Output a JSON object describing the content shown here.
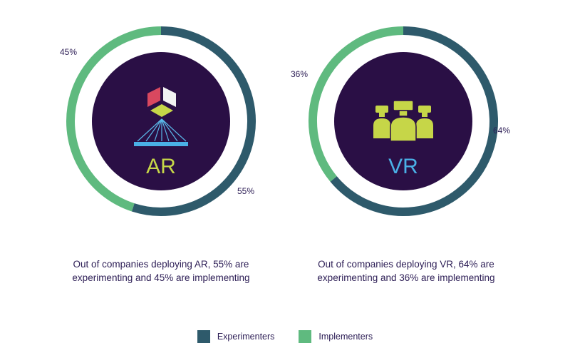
{
  "colors": {
    "experimenters": "#2e5a6b",
    "implementers": "#5fba7f",
    "inner": "#2a0f45",
    "ar_label": "#c6d648",
    "vr_label": "#4ab0e6"
  },
  "chart_data": [
    {
      "type": "pie",
      "variant": "donut",
      "center_label": "AR",
      "icon": "ar-cube-projection-icon",
      "series": [
        {
          "name": "Experimenters",
          "value": 55,
          "label": "55%"
        },
        {
          "name": "Implementers",
          "value": 45,
          "label": "45%"
        }
      ],
      "caption_line1": "Out of companies deploying AR, 55% are",
      "caption_line2": "experimenting and 45% are implementing"
    },
    {
      "type": "pie",
      "variant": "donut",
      "center_label": "VR",
      "icon": "vr-headset-users-icon",
      "series": [
        {
          "name": "Experimenters",
          "value": 64,
          "label": "64%"
        },
        {
          "name": "Implementers",
          "value": 36,
          "label": "36%"
        }
      ],
      "caption_line1": "Out of companies deploying VR, 64% are",
      "caption_line2": "experimenting and 36% are implementing"
    }
  ],
  "legend": [
    {
      "label": "Experimenters",
      "color": "#2e5a6b"
    },
    {
      "label": "Implementers",
      "color": "#5fba7f"
    }
  ]
}
